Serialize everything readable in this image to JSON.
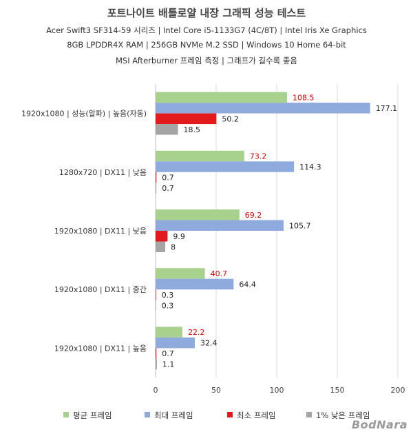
{
  "chart_data": {
    "type": "bar",
    "orientation": "horizontal",
    "title": "포트나이트 배틀로얄 내장 그래픽 성능 테스트",
    "subtitle_lines": [
      "Acer Swift3 SF314-59 시리즈 | Intel Core i5-1133G7 (4C/8T) | Intel Iris Xe Graphics",
      "8GB LPDDR4X RAM | 256GB NVMe M.2 SSD | Windows 10 Home 64-bit",
      "MSI Afterburner 프레임 측정 | 그래프가 길수록 좋음"
    ],
    "categories": [
      "1920x1080 | 성능(알파) | 높음(자동)",
      "1280x720 | DX11 | 낮음",
      "1920x1080 | DX11 | 낮음",
      "1920x1080 | DX11 | 중간",
      "1920x1080 | DX11 | 높음"
    ],
    "series": [
      {
        "name": "평균 프레임",
        "color": "#a9d18e",
        "label_color": "#d60000",
        "values": [
          108.5,
          73.2,
          69.2,
          40.7,
          22.2
        ]
      },
      {
        "name": "최대 프레임",
        "color": "#8faadc",
        "label_color": "#222222",
        "values": [
          177.1,
          114.3,
          105.7,
          64.4,
          32.4
        ]
      },
      {
        "name": "최소 프레임",
        "color": "#e31a1c",
        "label_color": "#222222",
        "values": [
          50.2,
          0.7,
          9.9,
          0.3,
          0.7
        ]
      },
      {
        "name": "1% 낮은 프레임",
        "color": "#a5a5a5",
        "label_color": "#222222",
        "values": [
          18.5,
          0.7,
          8,
          0.3,
          1.1
        ]
      }
    ],
    "xlim": [
      0,
      200
    ],
    "xticks": [
      0,
      50,
      100,
      150,
      200
    ],
    "grid": true,
    "legend_position": "bottom"
  },
  "watermark": "BodNara"
}
